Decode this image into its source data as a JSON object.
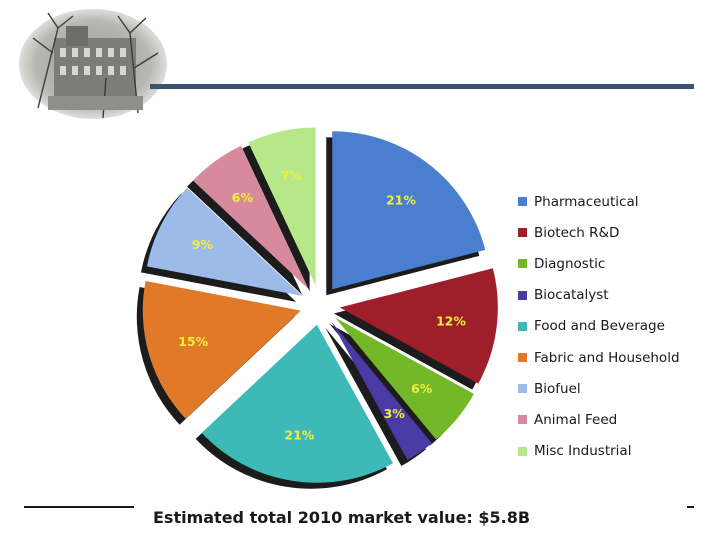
{
  "caption": "Estimated total 2010 market value: $5.8B",
  "chart_data": {
    "type": "pie",
    "exploded": true,
    "title": "",
    "legend_position": "right",
    "slices": [
      {
        "name": "Pharmaceutical",
        "value": 21,
        "label": "21%",
        "color": "#4a7fd0",
        "label_color": "#f2ee3c"
      },
      {
        "name": "Biotech R&D",
        "value": 12,
        "label": "12%",
        "color": "#9e1e2a",
        "label_color": "#f2ee3c"
      },
      {
        "name": "Diagnostic",
        "value": 6,
        "label": "6%",
        "color": "#72b828",
        "label_color": "#f2ee3c"
      },
      {
        "name": "Biocatalyst",
        "value": 3,
        "label": "3%",
        "color": "#4a3aa6",
        "label_color": "#f2ee3c"
      },
      {
        "name": "Food and Beverage",
        "value": 21,
        "label": "21%",
        "color": "#3db9b8",
        "label_color": "#f2ee3c"
      },
      {
        "name": "Fabric and Household",
        "value": 15,
        "label": "15%",
        "color": "#e07a28",
        "label_color": "#f2ee3c"
      },
      {
        "name": "Biofuel",
        "value": 9,
        "label": "9%",
        "color": "#9dbbe8",
        "label_color": "#f2ee3c"
      },
      {
        "name": "Animal Feed",
        "value": 6,
        "label": "6%",
        "color": "#d7899e",
        "label_color": "#f2ee3c"
      },
      {
        "name": "Misc Industrial",
        "value": 7,
        "label": "7%",
        "color": "#b6e88a",
        "label_color": "#f2ee3c"
      }
    ]
  }
}
